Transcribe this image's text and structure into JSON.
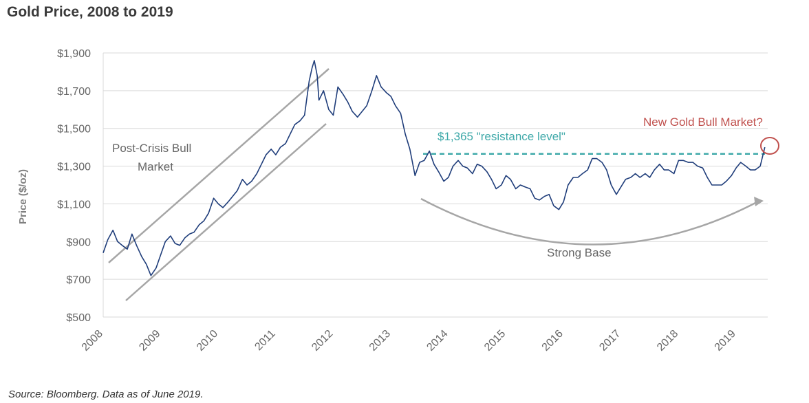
{
  "header": {
    "title": "Gold Price, 2008 to 2019"
  },
  "footer": {
    "source": "Source: Bloomberg. Data as of June 2019."
  },
  "chart_data": {
    "type": "line",
    "title": "Gold Price, 2008 to 2019",
    "ylabel": "Price ($/oz)",
    "xlabel": "",
    "ylim": [
      500,
      1900
    ],
    "xlim": [
      2008.0,
      2019.55
    ],
    "yticks": [
      1900,
      1700,
      1500,
      1300,
      1100,
      900,
      700,
      500
    ],
    "ytick_labels": [
      "$1,900",
      "$1,700",
      "$1,500",
      "$1,300",
      "$1,100",
      "$900",
      "$700",
      "$500"
    ],
    "xticks": [
      2008,
      2009,
      2010,
      2011,
      2012,
      2013,
      2014,
      2015,
      2016,
      2017,
      2018,
      2019
    ],
    "xtick_labels": [
      "2008",
      "2009",
      "2010",
      "2011",
      "2012",
      "2013",
      "2014",
      "2015",
      "2016",
      "2017",
      "2018",
      "2019"
    ],
    "grid": "horizontal",
    "colors": {
      "line": "#1f3d7a",
      "grid": "#d9d9d9",
      "resistance": "#3fa9a9",
      "trend": "#a6a6a6",
      "new_bull": "#c0504d"
    },
    "series": [
      {
        "x": [
          2008.0,
          2008.08,
          2008.17,
          2008.25,
          2008.33,
          2008.42,
          2008.5,
          2008.58,
          2008.67,
          2008.75,
          2008.83,
          2008.92,
          2009.0,
          2009.08,
          2009.17,
          2009.25,
          2009.33,
          2009.42,
          2009.5,
          2009.58,
          2009.67,
          2009.75,
          2009.83,
          2009.92,
          2010.0,
          2010.08,
          2010.17,
          2010.25,
          2010.33,
          2010.42,
          2010.5,
          2010.58,
          2010.67,
          2010.75,
          2010.83,
          2010.92,
          2011.0,
          2011.08,
          2011.17,
          2011.25,
          2011.33,
          2011.42,
          2011.5,
          2011.58,
          2011.63,
          2011.67,
          2011.72,
          2011.75,
          2011.83,
          2011.92,
          2012.0,
          2012.08,
          2012.17,
          2012.25,
          2012.33,
          2012.42,
          2012.5,
          2012.58,
          2012.67,
          2012.75,
          2012.83,
          2012.92,
          2013.0,
          2013.08,
          2013.17,
          2013.25,
          2013.33,
          2013.42,
          2013.5,
          2013.58,
          2013.67,
          2013.75,
          2013.83,
          2013.92,
          2014.0,
          2014.08,
          2014.17,
          2014.25,
          2014.33,
          2014.42,
          2014.5,
          2014.58,
          2014.67,
          2014.75,
          2014.83,
          2014.92,
          2015.0,
          2015.08,
          2015.17,
          2015.25,
          2015.33,
          2015.42,
          2015.5,
          2015.58,
          2015.67,
          2015.75,
          2015.83,
          2015.92,
          2016.0,
          2016.08,
          2016.17,
          2016.25,
          2016.33,
          2016.42,
          2016.5,
          2016.58,
          2016.67,
          2016.75,
          2016.83,
          2016.92,
          2017.0,
          2017.08,
          2017.17,
          2017.25,
          2017.33,
          2017.42,
          2017.5,
          2017.58,
          2017.67,
          2017.75,
          2017.83,
          2017.92,
          2018.0,
          2018.08,
          2018.17,
          2018.25,
          2018.33,
          2018.42,
          2018.5,
          2018.58,
          2018.67,
          2018.75,
          2018.83,
          2018.92,
          2019.0,
          2019.08,
          2019.17,
          2019.25,
          2019.33,
          2019.42,
          2019.5
        ],
        "values": [
          840,
          910,
          960,
          900,
          880,
          860,
          940,
          880,
          820,
          780,
          720,
          760,
          830,
          900,
          930,
          890,
          880,
          920,
          940,
          950,
          990,
          1010,
          1050,
          1130,
          1100,
          1080,
          1110,
          1140,
          1170,
          1230,
          1200,
          1220,
          1260,
          1310,
          1360,
          1390,
          1360,
          1400,
          1420,
          1470,
          1520,
          1540,
          1570,
          1750,
          1820,
          1860,
          1780,
          1650,
          1700,
          1600,
          1570,
          1720,
          1680,
          1640,
          1590,
          1560,
          1590,
          1620,
          1700,
          1780,
          1720,
          1690,
          1670,
          1620,
          1580,
          1470,
          1390,
          1250,
          1320,
          1330,
          1380,
          1310,
          1270,
          1220,
          1240,
          1300,
          1330,
          1300,
          1290,
          1260,
          1310,
          1300,
          1270,
          1230,
          1180,
          1200,
          1250,
          1230,
          1180,
          1200,
          1190,
          1180,
          1130,
          1120,
          1140,
          1150,
          1090,
          1070,
          1110,
          1200,
          1240,
          1240,
          1260,
          1280,
          1340,
          1340,
          1320,
          1280,
          1200,
          1150,
          1190,
          1230,
          1240,
          1260,
          1240,
          1260,
          1240,
          1280,
          1310,
          1280,
          1280,
          1260,
          1330,
          1330,
          1320,
          1320,
          1300,
          1290,
          1240,
          1200,
          1200,
          1200,
          1220,
          1250,
          1290,
          1320,
          1300,
          1280,
          1280,
          1300,
          1400
        ]
      }
    ],
    "annotations": {
      "post_crisis": [
        "Post-Crisis  Bull",
        "Market"
      ],
      "resistance": "$1,365 \"resistance level\"",
      "resistance_value": 1365,
      "strong_base": "Strong Base",
      "new_bull": "New Gold Bull Market?"
    }
  }
}
